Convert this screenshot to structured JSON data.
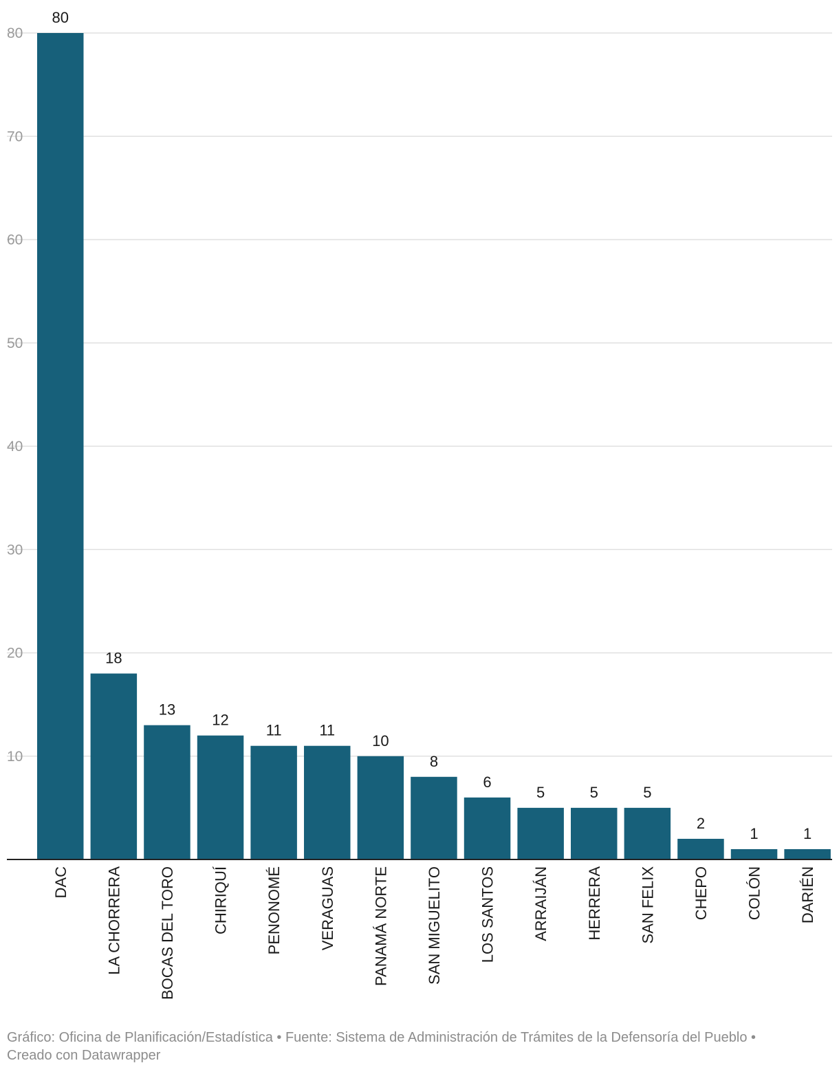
{
  "chart_data": {
    "type": "bar",
    "categories": [
      "DAC",
      "LA CHORRERA",
      "BOCAS DEL TORO",
      "CHIRIQUÍ",
      "PENONOMÉ",
      "VERAGUAS",
      "PANAMÁ NORTE",
      "SAN MIGUELITO",
      "LOS SANTOS",
      "ARRAIJÁN",
      "HERRERA",
      "SAN FELIX",
      "CHEPO",
      "COLÓN",
      "DARIÉN"
    ],
    "values": [
      80,
      18,
      13,
      12,
      11,
      11,
      10,
      8,
      6,
      5,
      5,
      5,
      2,
      1,
      1
    ],
    "title": "",
    "xlabel": "",
    "ylabel": "",
    "ylim": [
      0,
      80
    ],
    "yticks": [
      10,
      20,
      30,
      40,
      50,
      60,
      70,
      80
    ],
    "grid": true,
    "colors": {
      "bar": "#17607a",
      "grid": "#e0e0e0",
      "axis": "#222222"
    }
  },
  "footer": {
    "line1": "Gráfico: Oficina de Planificación/Estadística • Fuente: Sistema de Administración de Trámites de la Defensoría del Pueblo •",
    "line2": "Creado con Datawrapper"
  }
}
